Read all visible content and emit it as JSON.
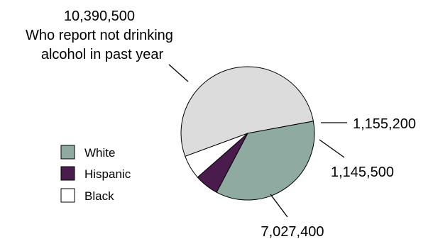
{
  "chart_data": {
    "type": "pie",
    "slices": [
      {
        "name": "",
        "value": 10390500,
        "label": "10,390,500",
        "label2": "Who report not drinking",
        "label3": "alcohol in past year",
        "color": "#dcdcdc"
      },
      {
        "name": "Black",
        "value": 1155200,
        "label": "1,155,200",
        "color": "#ffffff"
      },
      {
        "name": "Hispanic",
        "value": 1145500,
        "label": "1,145,500",
        "color": "#4a1c4e"
      },
      {
        "name": "White",
        "value": 7027400,
        "label": "7,027,400",
        "color": "#8faaa0"
      }
    ],
    "legend": {
      "position": "left",
      "entries": [
        {
          "name": "White",
          "color": "#8faaa0"
        },
        {
          "name": "Hispanic",
          "color": "#4a1c4e"
        },
        {
          "name": "Black",
          "color": "#ffffff"
        }
      ]
    }
  }
}
